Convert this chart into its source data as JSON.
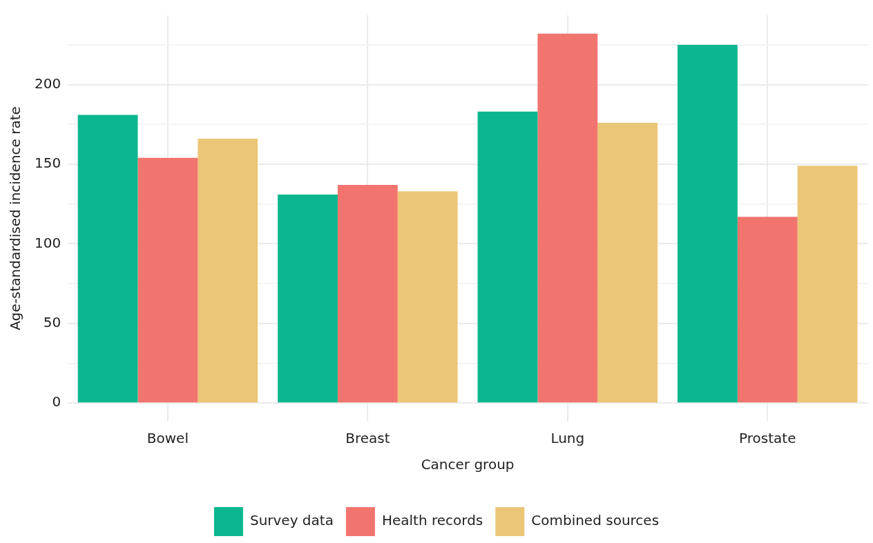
{
  "chart_data": {
    "type": "bar",
    "xlabel": "Cancer group",
    "ylabel": "Age-standardised incidence rate",
    "categories": [
      "Bowel",
      "Breast",
      "Lung",
      "Prostate"
    ],
    "series": [
      {
        "name": "Survey data",
        "color": "#0cb78f",
        "values": [
          181,
          131,
          183,
          225
        ]
      },
      {
        "name": "Health records",
        "color": "#f1756e",
        "values": [
          154,
          137,
          232,
          117
        ]
      },
      {
        "name": "Combined sources",
        "color": "#ecc677",
        "values": [
          166,
          133,
          176,
          149
        ]
      }
    ],
    "ylim": [
      -11.6,
      243.6
    ],
    "yticks": [
      0,
      {
        "value": 25,
        "label": null
      },
      50,
      {
        "value": 75,
        "label": null
      },
      100,
      {
        "value": 125,
        "label": null
      },
      150,
      {
        "value": 175,
        "label": null
      },
      200,
      {
        "value": 225,
        "label": null
      }
    ],
    "grid": true,
    "legend": "bottom"
  }
}
